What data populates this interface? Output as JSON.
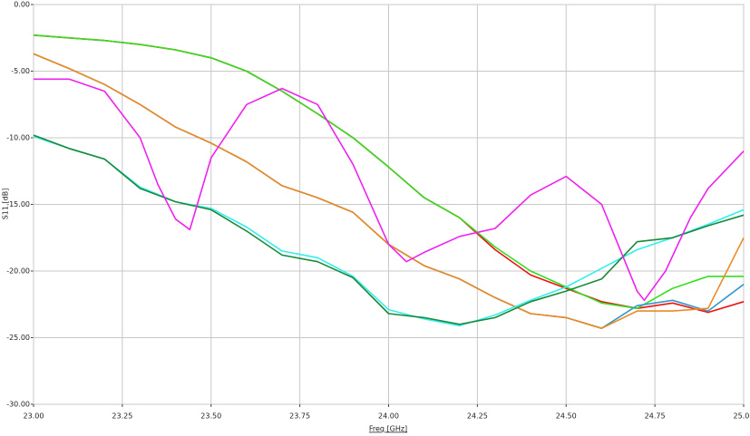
{
  "chart_data": {
    "type": "line",
    "x_label": "Freq [GHz]",
    "y_label": "S11 [dB]",
    "x": [
      23.0,
      23.1,
      23.2,
      23.3,
      23.4,
      23.5,
      23.6,
      23.7,
      23.8,
      23.9,
      24.0,
      24.1,
      24.2,
      24.3,
      24.4,
      24.5,
      24.6,
      24.7,
      24.8,
      24.9,
      25.0
    ],
    "series": [
      {
        "color": "#ee1111",
        "values": [
          -2.3,
          -2.5,
          -2.7,
          -3.0,
          -3.4,
          -4.0,
          -5.0,
          -6.5,
          -8.2,
          -10.0,
          -12.2,
          -14.5,
          -16.0,
          -18.4,
          -20.3,
          -21.3,
          -22.3,
          -22.8,
          -22.4,
          -23.1,
          -22.3
        ]
      },
      {
        "color": "#33dd22",
        "values": [
          -2.3,
          -2.5,
          -2.7,
          -3.0,
          -3.4,
          -4.0,
          -5.0,
          -6.5,
          -8.2,
          -10.0,
          -12.2,
          -14.5,
          -16.0,
          -18.2,
          -20.0,
          -21.2,
          -22.4,
          -22.8,
          -21.3,
          -20.4,
          -20.4
        ]
      },
      {
        "color": "#3399cc",
        "values": [
          -3.7,
          -4.8,
          -6.0,
          -7.5,
          -9.2,
          -10.4,
          -11.8,
          -13.6,
          -14.5,
          -15.6,
          -18.0,
          -19.6,
          -20.6,
          -22.0,
          -23.2,
          -23.5,
          -24.3,
          -22.6,
          -22.2,
          -23.0,
          -21.0
        ]
      },
      {
        "color": "#ee8822",
        "values": [
          -3.7,
          -4.8,
          -6.0,
          -7.5,
          -9.2,
          -10.4,
          -11.8,
          -13.6,
          -14.5,
          -15.6,
          -18.0,
          -19.6,
          -20.6,
          -22.0,
          -23.2,
          -23.5,
          -24.3,
          -23.0,
          -23.0,
          -22.8,
          -17.5
        ]
      },
      {
        "color": "#33eeee",
        "values": [
          -9.9,
          -10.8,
          -11.6,
          -13.7,
          -14.8,
          -15.3,
          -16.7,
          -18.5,
          -19.0,
          -20.4,
          -22.9,
          -23.6,
          -24.1,
          -23.3,
          -22.2,
          -21.2,
          -19.8,
          -18.4,
          -17.5,
          -16.5,
          -15.4
        ]
      },
      {
        "color": "#1a8a3a",
        "values": [
          -9.8,
          -10.8,
          -11.6,
          -13.8,
          -14.8,
          -15.4,
          -17.0,
          -18.8,
          -19.3,
          -20.5,
          -23.2,
          -23.5,
          -24.0,
          -23.5,
          -22.3,
          -21.5,
          -20.6,
          -17.8,
          -17.5,
          -16.6,
          -15.8
        ]
      },
      {
        "color": "#ee22ee",
        "x": [
          23.0,
          23.1,
          23.2,
          23.3,
          23.35,
          23.4,
          23.44,
          23.5,
          23.6,
          23.7,
          23.8,
          23.9,
          24.0,
          24.05,
          24.1,
          24.2,
          24.3,
          24.4,
          24.5,
          24.6,
          24.7,
          24.72,
          24.78,
          24.85,
          24.9,
          25.0
        ],
        "values": [
          -5.6,
          -5.6,
          -6.5,
          -10.0,
          -13.5,
          -16.1,
          -16.9,
          -11.5,
          -7.5,
          -6.3,
          -7.5,
          -12.0,
          -18.0,
          -19.3,
          -18.6,
          -17.4,
          -16.8,
          -14.3,
          -12.9,
          -15.0,
          -21.5,
          -22.2,
          -20.0,
          -16.0,
          -13.8,
          -11.0
        ]
      }
    ],
    "xlim": [
      23.0,
      25.0
    ],
    "xticks": [
      {
        "value": 23.0,
        "label": "23.00"
      },
      {
        "value": 23.25,
        "label": "23.25"
      },
      {
        "value": 23.5,
        "label": "23.50"
      },
      {
        "value": 23.75,
        "label": "23.75"
      },
      {
        "value": 24.0,
        "label": "24.00"
      },
      {
        "value": 24.25,
        "label": "24.25"
      },
      {
        "value": 24.5,
        "label": "24.50"
      },
      {
        "value": 24.75,
        "label": "24.75"
      },
      {
        "value": 25.0,
        "label": "25.00"
      }
    ],
    "ylim": [
      -30,
      0
    ],
    "yticks": [
      {
        "value": 0,
        "label": "0.00"
      },
      {
        "value": -5,
        "label": "-5.00"
      },
      {
        "value": -10,
        "label": "-10.00"
      },
      {
        "value": -15,
        "label": "-15.00"
      },
      {
        "value": -20,
        "label": "-20.00"
      },
      {
        "value": -25,
        "label": "-25.00"
      },
      {
        "value": -30,
        "label": "-30.00"
      }
    ],
    "grid": true
  }
}
